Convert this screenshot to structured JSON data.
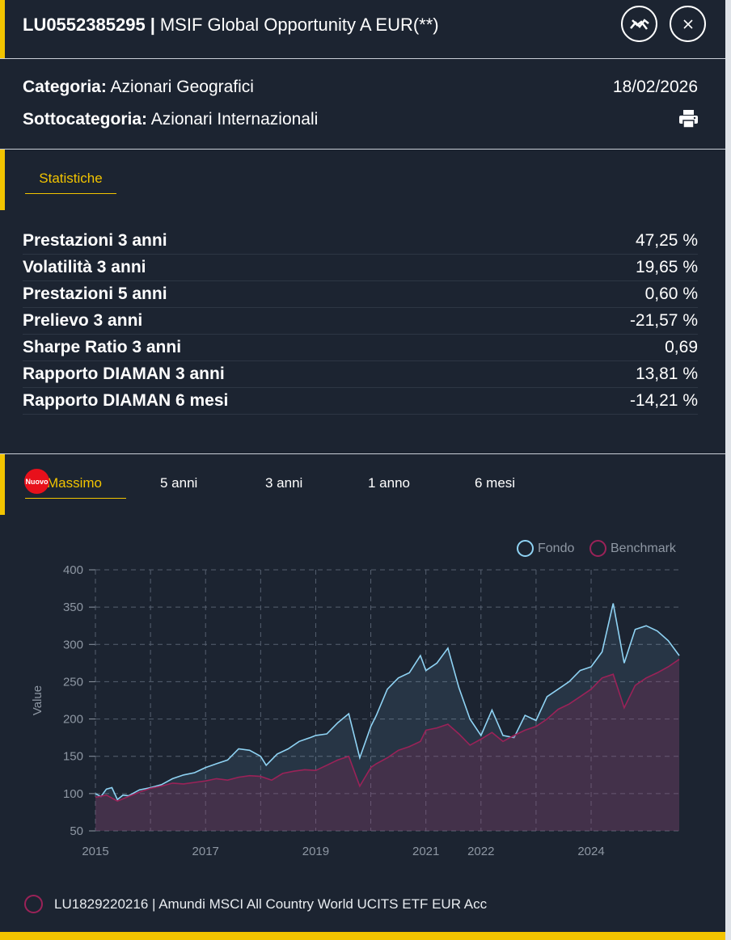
{
  "header": {
    "isin": "LU0552385295",
    "separator": "|",
    "fund_name": "MSIF Global Opportunity A EUR(**)",
    "compare_icon": "chart-compare-icon",
    "close_icon": "close-icon"
  },
  "meta": {
    "category_label": "Categoria:",
    "category_value": "Azionari Geografici",
    "subcategory_label": "Sottocategoria:",
    "subcategory_value": "Azionari Internazionali",
    "date": "18/02/2026",
    "print_icon": "printer-icon"
  },
  "stats_tab": {
    "label": "Statistiche"
  },
  "stats": [
    {
      "label": "Prestazioni 3 anni",
      "value": "47,25 %"
    },
    {
      "label": "Volatilità 3 anni",
      "value": "19,65 %"
    },
    {
      "label": "Prestazioni 5 anni",
      "value": "0,60 %"
    },
    {
      "label": "Prelievo 3 anni",
      "value": "-21,57 %"
    },
    {
      "label": "Sharpe Ratio 3 anni",
      "value": "0,69"
    },
    {
      "label": "Rapporto DIAMAN 3 anni",
      "value": "13,81 %"
    },
    {
      "label": "Rapporto DIAMAN 6 mesi",
      "value": "-14,21 %"
    }
  ],
  "range_tabs": {
    "badge": "Nuovo",
    "items": [
      "Massimo",
      "5 anni",
      "3 anni",
      "1 anno",
      "6 mesi"
    ],
    "active": "Massimo"
  },
  "colors": {
    "accent": "#f2c400",
    "fund_line": "#8fd3f4",
    "benchmark_line": "#9b2258",
    "panel": "#1c2431"
  },
  "chart_data": {
    "type": "area",
    "ylabel": "Value",
    "xlabel": "",
    "ylim": [
      50,
      400
    ],
    "y_ticks": [
      50,
      100,
      150,
      200,
      250,
      300,
      350,
      400
    ],
    "x_ticks": [
      "2015",
      "2017",
      "2019",
      "2021",
      "2022",
      "2024"
    ],
    "grid": true,
    "legend_position": "top-right",
    "series": [
      {
        "name": "Fondo",
        "x": [
          2015.0,
          2015.1,
          2015.2,
          2015.3,
          2015.4,
          2015.5,
          2015.6,
          2015.8,
          2016.0,
          2016.2,
          2016.4,
          2016.6,
          2016.8,
          2017.0,
          2017.2,
          2017.4,
          2017.6,
          2017.8,
          2018.0,
          2018.1,
          2018.3,
          2018.5,
          2018.7,
          2018.9,
          2019.0,
          2019.2,
          2019.4,
          2019.6,
          2019.8,
          2020.0,
          2020.1,
          2020.3,
          2020.5,
          2020.7,
          2020.9,
          2021.0,
          2021.2,
          2021.4,
          2021.6,
          2021.8,
          2022.0,
          2022.2,
          2022.4,
          2022.6,
          2022.8,
          2023.0,
          2023.2,
          2023.4,
          2023.6,
          2023.8,
          2024.0,
          2024.2,
          2024.4,
          2024.6,
          2024.8,
          2025.0,
          2025.2,
          2025.4,
          2025.6
        ],
        "y": [
          100,
          96,
          106,
          108,
          92,
          98,
          97,
          105,
          108,
          112,
          120,
          125,
          128,
          135,
          140,
          145,
          160,
          158,
          150,
          138,
          153,
          160,
          170,
          175,
          178,
          180,
          195,
          207,
          148,
          190,
          205,
          240,
          255,
          262,
          285,
          265,
          275,
          295,
          242,
          200,
          178,
          212,
          178,
          175,
          205,
          198,
          230,
          240,
          250,
          265,
          270,
          290,
          355,
          275,
          320,
          325,
          318,
          305,
          285
        ]
      },
      {
        "name": "Benchmark",
        "x": [
          2015.0,
          2015.2,
          2015.4,
          2015.6,
          2015.8,
          2016.0,
          2016.2,
          2016.4,
          2016.6,
          2016.8,
          2017.0,
          2017.2,
          2017.4,
          2017.6,
          2017.8,
          2018.0,
          2018.2,
          2018.4,
          2018.6,
          2018.8,
          2019.0,
          2019.2,
          2019.4,
          2019.6,
          2019.8,
          2020.0,
          2020.1,
          2020.3,
          2020.5,
          2020.7,
          2020.9,
          2021.0,
          2021.2,
          2021.4,
          2021.6,
          2021.8,
          2022.0,
          2022.2,
          2022.4,
          2022.6,
          2022.8,
          2023.0,
          2023.2,
          2023.4,
          2023.6,
          2023.8,
          2024.0,
          2024.2,
          2024.4,
          2024.6,
          2024.8,
          2025.0,
          2025.2,
          2025.4,
          2025.6
        ],
        "y": [
          95,
          98,
          90,
          96,
          102,
          107,
          110,
          114,
          113,
          115,
          117,
          120,
          118,
          122,
          124,
          123,
          118,
          127,
          130,
          132,
          131,
          138,
          145,
          150,
          110,
          135,
          140,
          148,
          158,
          163,
          170,
          185,
          188,
          193,
          180,
          165,
          173,
          182,
          170,
          178,
          185,
          190,
          200,
          213,
          220,
          230,
          240,
          255,
          260,
          215,
          245,
          255,
          262,
          270,
          280
        ]
      }
    ]
  },
  "benchmark_footer": {
    "text": "LU1829220216 | Amundi MSCI All Country World UCITS ETF EUR Acc"
  }
}
